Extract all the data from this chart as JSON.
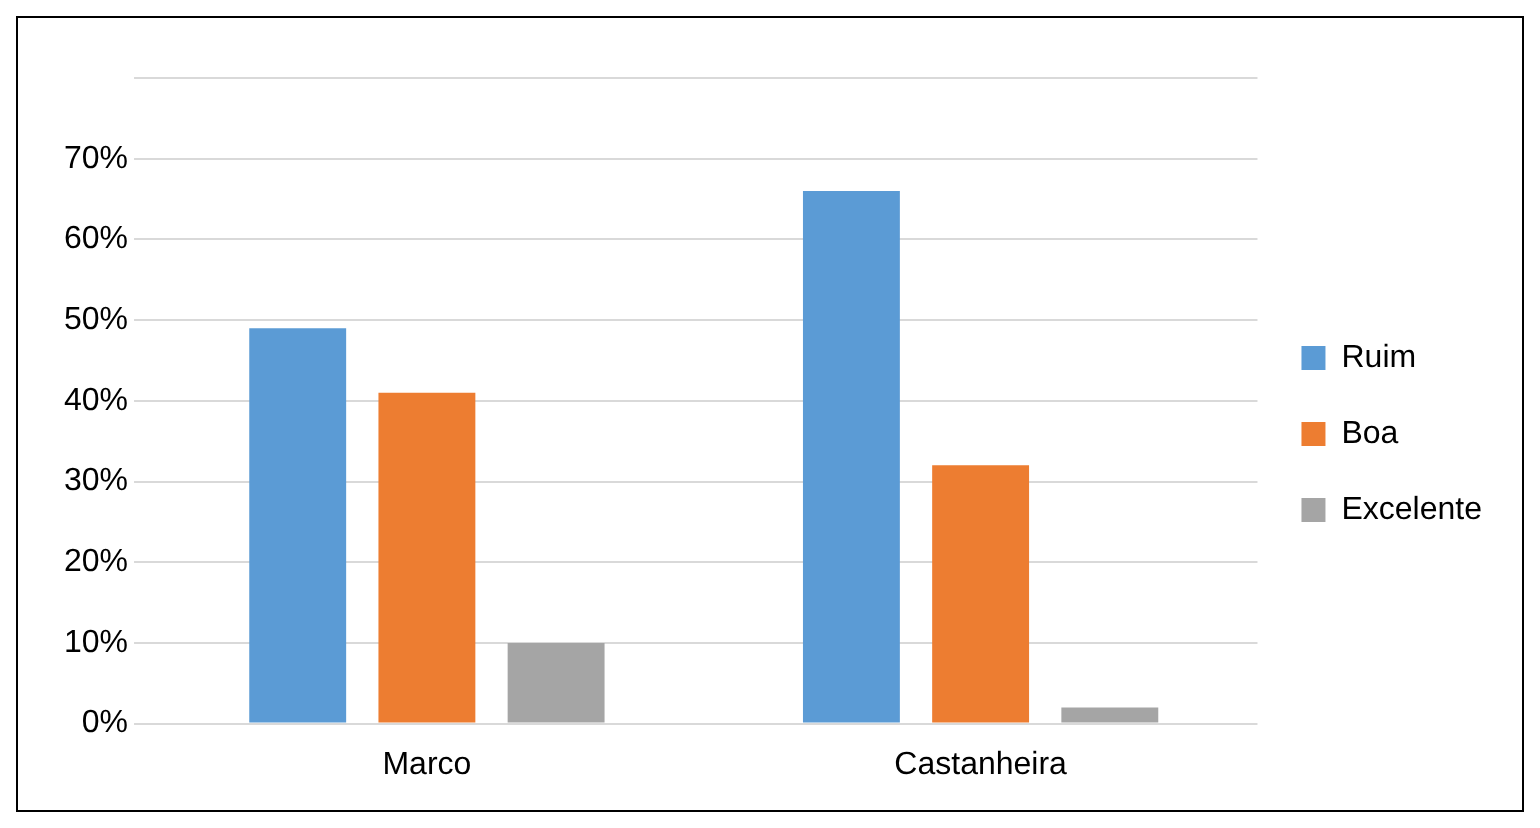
{
  "chart_data": {
    "type": "bar",
    "categories": [
      "Marco",
      "Castanheira"
    ],
    "series": [
      {
        "name": "Ruim",
        "color": "#5b9bd5",
        "values": [
          49,
          66
        ]
      },
      {
        "name": "Boa",
        "color": "#ed7d31",
        "values": [
          41,
          32
        ]
      },
      {
        "name": "Excelente",
        "color": "#a5a5a5",
        "values": [
          10,
          2
        ]
      }
    ],
    "ylim": [
      0,
      80
    ],
    "yticks": [
      {
        "value": 0,
        "label": "0%"
      },
      {
        "value": 10,
        "label": "10%"
      },
      {
        "value": 20,
        "label": "20%"
      },
      {
        "value": 30,
        "label": "30%"
      },
      {
        "value": 40,
        "label": "40%"
      },
      {
        "value": 50,
        "label": "50%"
      },
      {
        "value": 60,
        "label": "60%"
      },
      {
        "value": 70,
        "label": "70%"
      },
      {
        "value": 80,
        "label": null
      }
    ],
    "grid": "y",
    "legend": "right"
  }
}
